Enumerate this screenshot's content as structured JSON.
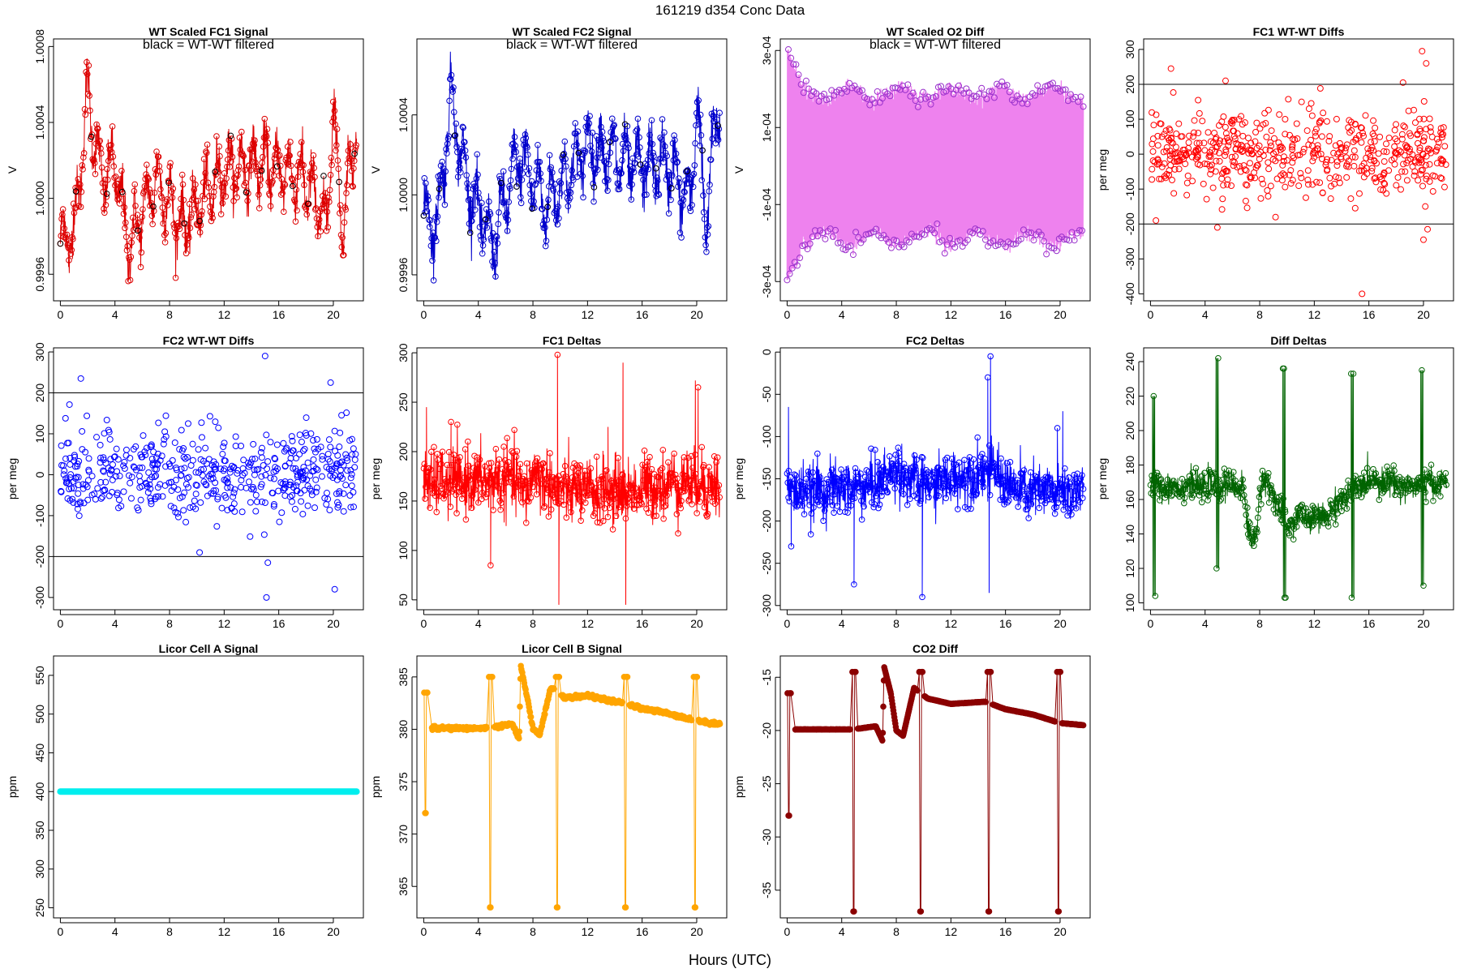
{
  "figure": {
    "title": "161219    d354    Conc Data",
    "xlabel": "Hours (UTC)"
  },
  "chart_data": [
    {
      "id": "p1",
      "type": "line",
      "title": "WT Scaled FC1 Signal",
      "note": "black = WT-WT filtered",
      "xlabel": "",
      "ylabel": "V",
      "color": "#dd0000",
      "xlim": [
        -0.5,
        22.2
      ],
      "ylim": [
        0.99946,
        1.00084
      ],
      "xticks": [
        0,
        4,
        8,
        12,
        16,
        20
      ],
      "xtick_labels": [
        "0",
        "4",
        "8",
        "12",
        "16",
        "20"
      ],
      "yticks": [
        0.9996,
        1.0,
        1.0004,
        1.0008
      ],
      "ytick_labels": [
        "0.9996",
        "1.0000",
        "1.0004",
        "1.0008"
      ],
      "gen": {
        "base": 1.00009,
        "drift": [
          [
            0,
            0.99978
          ],
          [
            1,
            0.99982
          ],
          [
            2,
            1.00055
          ],
          [
            3,
            1.0001
          ],
          [
            4,
            1.00018
          ],
          [
            5,
            0.99975
          ],
          [
            7,
            1.0001
          ],
          [
            9,
            0.99985
          ],
          [
            12,
            1.00015
          ],
          [
            15,
            1.00018
          ],
          [
            18,
            1.0001
          ],
          [
            19.5,
            0.99985
          ],
          [
            20,
            1.00045
          ],
          [
            20.7,
            0.9998
          ],
          [
            21.5,
            1.00035
          ]
        ],
        "amp": 0.00022,
        "osc": 2.3,
        "noise": 6e-05,
        "style": "line"
      }
    },
    {
      "id": "p2",
      "type": "line",
      "title": "WT Scaled FC2 Signal",
      "note": "black = WT-WT filtered",
      "xlabel": "",
      "ylabel": "V",
      "color": "#0000cc",
      "xlim": [
        -0.5,
        22.2
      ],
      "ylim": [
        0.99947,
        1.00078
      ],
      "xticks": [
        0,
        4,
        8,
        12,
        16,
        20
      ],
      "xtick_labels": [
        "0",
        "4",
        "8",
        "12",
        "16",
        "20"
      ],
      "yticks": [
        0.9996,
        1.0,
        1.0004
      ],
      "ytick_labels": [
        "0.9996",
        "1.0000",
        "1.0004"
      ],
      "gen": {
        "base": 1.0001,
        "drift": [
          [
            0,
            0.9999
          ],
          [
            1,
            0.99985
          ],
          [
            2,
            1.0005
          ],
          [
            3,
            1.0001
          ],
          [
            5,
            0.99975
          ],
          [
            7,
            1.0002
          ],
          [
            9,
            0.99995
          ],
          [
            12,
            1.00025
          ],
          [
            15,
            1.00015
          ],
          [
            18,
            1.00015
          ],
          [
            19.5,
            0.99995
          ],
          [
            20,
            1.00045
          ],
          [
            20.7,
            0.99985
          ],
          [
            21.5,
            1.00045
          ]
        ],
        "amp": 0.00021,
        "osc": 2.2,
        "noise": 6e-05,
        "style": "line"
      }
    },
    {
      "id": "p3",
      "type": "scatter",
      "title": "WT Scaled O2 Diff",
      "note": "black = WT-WT filtered",
      "xlabel": "",
      "ylabel": "V",
      "color": "#ee82ee",
      "xlim": [
        -0.5,
        22.2
      ],
      "ylim": [
        -0.00035,
        0.00033
      ],
      "xticks": [
        0,
        4,
        8,
        12,
        16,
        20
      ],
      "xtick_labels": [
        "0",
        "4",
        "8",
        "12",
        "16",
        "20"
      ],
      "yticks": [
        -0.0003,
        -0.0001,
        0.0001,
        0.0003
      ],
      "ytick_labels": [
        "-3e-04",
        "-1e-04",
        "1e-04",
        "3e-04"
      ],
      "gen": {
        "style": "o2"
      }
    },
    {
      "id": "p4",
      "type": "scatter",
      "title": "FC1 WT-WT Diffs",
      "xlabel": "",
      "ylabel": "per meg",
      "color": "#ff0000",
      "xlim": [
        -0.5,
        22.2
      ],
      "ylim": [
        -420,
        330
      ],
      "xticks": [
        0,
        4,
        8,
        12,
        16,
        20
      ],
      "xtick_labels": [
        "0",
        "4",
        "8",
        "12",
        "16",
        "20"
      ],
      "yticks": [
        -400,
        -300,
        -200,
        -100,
        0,
        100,
        200,
        300
      ],
      "ytick_labels": [
        "-400",
        "-300",
        "-200",
        "-100",
        "0",
        "100",
        "200",
        "300"
      ],
      "hlines": [
        200,
        -200
      ],
      "gen": {
        "base": 0,
        "sd": 75,
        "n": 560,
        "style": "scatter",
        "outliers": [
          [
            15.5,
            -400
          ],
          [
            19.9,
            295
          ],
          [
            20.2,
            260
          ],
          [
            20,
            -245
          ],
          [
            1.5,
            245
          ],
          [
            5.5,
            210
          ],
          [
            18.5,
            205
          ],
          [
            0.4,
            -190
          ],
          [
            4.9,
            -210
          ],
          [
            20.3,
            -215
          ]
        ]
      }
    },
    {
      "id": "p5",
      "type": "scatter",
      "title": "FC2 WT-WT Diffs",
      "xlabel": "",
      "ylabel": "per meg",
      "color": "#0000ff",
      "xlim": [
        -0.5,
        22.2
      ],
      "ylim": [
        -330,
        310
      ],
      "xticks": [
        0,
        4,
        8,
        12,
        16,
        20
      ],
      "xtick_labels": [
        "0",
        "4",
        "8",
        "12",
        "16",
        "20"
      ],
      "yticks": [
        -300,
        -200,
        -100,
        0,
        100,
        200,
        300
      ],
      "ytick_labels": [
        "-300",
        "-200",
        "-100",
        "0",
        "100",
        "200",
        "300"
      ],
      "hlines": [
        200,
        -200
      ],
      "gen": {
        "base": 5,
        "sd": 70,
        "n": 520,
        "style": "scatter",
        "outliers": [
          [
            15,
            290
          ],
          [
            1.5,
            235
          ],
          [
            19.8,
            225
          ],
          [
            15.1,
            -300
          ],
          [
            15.2,
            -215
          ],
          [
            20.1,
            -280
          ],
          [
            10.2,
            -190
          ]
        ]
      }
    },
    {
      "id": "p6",
      "type": "line",
      "title": "FC1 Deltas",
      "xlabel": "",
      "ylabel": "per meg",
      "color": "#ff0000",
      "xlim": [
        -0.5,
        22.2
      ],
      "ylim": [
        40,
        305
      ],
      "xticks": [
        0,
        4,
        8,
        12,
        16,
        20
      ],
      "xtick_labels": [
        "0",
        "4",
        "8",
        "12",
        "16",
        "20"
      ],
      "yticks": [
        50,
        100,
        150,
        200,
        250,
        300
      ],
      "ytick_labels": [
        "50",
        "100",
        "150",
        "200",
        "250",
        "300"
      ],
      "gen": {
        "base": 168,
        "drift": [
          [
            0,
            168
          ],
          [
            7,
            172
          ],
          [
            7.2,
            150
          ],
          [
            7.5,
            160
          ],
          [
            8,
            178
          ],
          [
            10,
            160
          ],
          [
            15,
            160
          ],
          [
            19,
            170
          ],
          [
            21.7,
            165
          ]
        ],
        "amp": 6,
        "osc": 2.0,
        "noise": 16,
        "style": "line",
        "spikes": [
          [
            9.8,
            298
          ],
          [
            9.9,
            45
          ],
          [
            14.6,
            290
          ],
          [
            14.8,
            45
          ],
          [
            19.9,
            272
          ],
          [
            20.1,
            265
          ],
          [
            0.2,
            245
          ],
          [
            4.9,
            85
          ],
          [
            13.5,
            225
          ],
          [
            2,
            230
          ]
        ]
      }
    },
    {
      "id": "p7",
      "type": "line",
      "title": "FC2 Deltas",
      "xlabel": "",
      "ylabel": "per meg",
      "color": "#0000ff",
      "xlim": [
        -0.5,
        22.2
      ],
      "ylim": [
        -305,
        5
      ],
      "xticks": [
        0,
        4,
        8,
        12,
        16,
        20
      ],
      "xtick_labels": [
        "0",
        "4",
        "8",
        "12",
        "16",
        "20"
      ],
      "yticks": [
        -300,
        -250,
        -200,
        -150,
        -100,
        -50,
        0
      ],
      "ytick_labels": [
        "-300",
        "-250",
        "-200",
        "-150",
        "-100",
        "-50",
        "0"
      ],
      "gen": {
        "base": -165,
        "drift": [
          [
            0,
            -165
          ],
          [
            6,
            -160
          ],
          [
            8,
            -140
          ],
          [
            10,
            -160
          ],
          [
            12,
            -150
          ],
          [
            15,
            -140
          ],
          [
            17,
            -165
          ],
          [
            21.7,
            -165
          ]
        ],
        "amp": 6,
        "osc": 2.0,
        "noise": 16,
        "style": "line",
        "spikes": [
          [
            0.1,
            -65
          ],
          [
            14.9,
            -5
          ],
          [
            14.7,
            -30
          ],
          [
            14.8,
            -285
          ],
          [
            9.9,
            -290
          ],
          [
            4.9,
            -275
          ],
          [
            0.3,
            -230
          ],
          [
            19.8,
            -90
          ],
          [
            20.2,
            -70
          ]
        ]
      }
    },
    {
      "id": "p8",
      "type": "line",
      "title": "Diff Deltas",
      "xlabel": "",
      "ylabel": "per meg",
      "color": "#006400",
      "xlim": [
        -0.5,
        22.2
      ],
      "ylim": [
        96,
        248
      ],
      "xticks": [
        0,
        4,
        8,
        12,
        16,
        20
      ],
      "xtick_labels": [
        "0",
        "4",
        "8",
        "12",
        "16",
        "20"
      ],
      "yticks": [
        100,
        120,
        140,
        160,
        180,
        200,
        220,
        240
      ],
      "ytick_labels": [
        "100",
        "120",
        "140",
        "160",
        "180",
        "200",
        "220",
        "240"
      ],
      "gen": {
        "base": 168,
        "drift": [
          [
            0,
            168
          ],
          [
            6.8,
            168
          ],
          [
            7,
            150
          ],
          [
            7.4,
            135
          ],
          [
            7.8,
            145
          ],
          [
            8.2,
            172
          ],
          [
            9,
            165
          ],
          [
            9.6,
            150
          ],
          [
            10,
            145
          ],
          [
            11,
            150
          ],
          [
            12.5,
            148
          ],
          [
            14,
            160
          ],
          [
            15,
            165
          ],
          [
            16,
            172
          ],
          [
            19,
            168
          ],
          [
            21.7,
            170
          ]
        ],
        "amp": 2,
        "osc": 1.5,
        "noise": 4,
        "style": "line",
        "pulses": [
          [
            0.25,
            104,
            220
          ],
          [
            4.9,
            120,
            242
          ],
          [
            9.8,
            103,
            236
          ],
          [
            14.8,
            103,
            233
          ],
          [
            19.9,
            110,
            235
          ]
        ]
      }
    },
    {
      "id": "p9",
      "type": "line",
      "title": "Licor Cell A Signal",
      "xlabel": "",
      "ylabel": "ppm",
      "color": "#00eeee",
      "xlim": [
        -0.5,
        22.2
      ],
      "ylim": [
        237,
        575
      ],
      "xticks": [
        0,
        4,
        8,
        12,
        16,
        20
      ],
      "xtick_labels": [
        "0",
        "4",
        "8",
        "12",
        "16",
        "20"
      ],
      "yticks": [
        250,
        300,
        350,
        400,
        450,
        500,
        550
      ],
      "ytick_labels": [
        "250",
        "300",
        "350",
        "400",
        "450",
        "500",
        "550"
      ],
      "gen": {
        "style": "flat",
        "value": 400
      }
    },
    {
      "id": "p10",
      "type": "line",
      "title": "Licor Cell B Signal",
      "xlabel": "",
      "ylabel": "ppm",
      "color": "#ffa500",
      "xlim": [
        -0.5,
        22.2
      ],
      "ylim": [
        362,
        387
      ],
      "xticks": [
        0,
        4,
        8,
        12,
        16,
        20
      ],
      "xtick_labels": [
        "0",
        "4",
        "8",
        "12",
        "16",
        "20"
      ],
      "yticks": [
        365,
        370,
        375,
        380,
        385
      ],
      "ytick_labels": [
        "365",
        "370",
        "375",
        "380",
        "385"
      ],
      "gen": {
        "style": "step",
        "base": 380,
        "drift": [
          [
            0.6,
            380.1
          ],
          [
            4.8,
            380.1
          ],
          [
            6.5,
            380.5
          ],
          [
            7,
            379
          ],
          [
            7.1,
            386
          ],
          [
            7.6,
            383
          ],
          [
            8,
            380
          ],
          [
            8.5,
            379.5
          ],
          [
            9.3,
            384
          ],
          [
            10.3,
            383
          ],
          [
            12,
            383.2
          ],
          [
            14.5,
            382.5
          ],
          [
            16,
            382
          ],
          [
            18,
            381.5
          ],
          [
            20,
            380.8
          ],
          [
            21.7,
            380.5
          ]
        ],
        "pulses": [
          [
            0.15,
            372,
            383.5
          ],
          [
            4.9,
            363,
            385
          ],
          [
            9.8,
            363,
            385
          ],
          [
            14.8,
            363,
            385
          ],
          [
            19.9,
            363,
            385
          ]
        ]
      }
    },
    {
      "id": "p11",
      "type": "line",
      "title": "CO2 Diff",
      "xlabel": "",
      "ylabel": "ppm",
      "color": "#8b0000",
      "xlim": [
        -0.5,
        22.2
      ],
      "ylim": [
        -37.6,
        -13
      ],
      "xticks": [
        0,
        4,
        8,
        12,
        16,
        20
      ],
      "xtick_labels": [
        "0",
        "4",
        "8",
        "12",
        "16",
        "20"
      ],
      "yticks": [
        -35,
        -30,
        -25,
        -20,
        -15
      ],
      "ytick_labels": [
        "-35",
        "-30",
        "-25",
        "-20",
        "-15"
      ],
      "gen": {
        "style": "step",
        "base": -20,
        "drift": [
          [
            0.6,
            -19.9
          ],
          [
            4.8,
            -19.9
          ],
          [
            6.5,
            -19.6
          ],
          [
            7,
            -21
          ],
          [
            7.1,
            -14
          ],
          [
            7.6,
            -16.5
          ],
          [
            8,
            -20
          ],
          [
            8.5,
            -20.5
          ],
          [
            9.3,
            -16
          ],
          [
            10.3,
            -17
          ],
          [
            12,
            -17.5
          ],
          [
            14.5,
            -17.3
          ],
          [
            16,
            -18
          ],
          [
            18,
            -18.5
          ],
          [
            20,
            -19.3
          ],
          [
            21.7,
            -19.5
          ]
        ],
        "pulses": [
          [
            0.15,
            -28,
            -16.5
          ],
          [
            4.9,
            -37,
            -14.5
          ],
          [
            9.8,
            -37,
            -14.5
          ],
          [
            14.8,
            -37,
            -14.5
          ],
          [
            19.9,
            -37,
            -14.5
          ]
        ]
      }
    }
  ]
}
